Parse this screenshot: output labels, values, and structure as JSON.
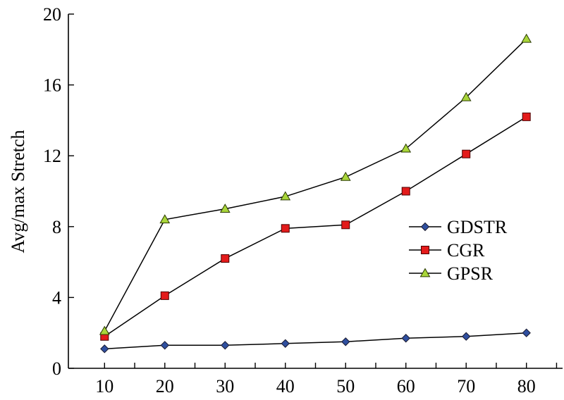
{
  "chart_data": {
    "type": "line",
    "title": "",
    "xlabel": "",
    "ylabel": "Avg/max Stretch",
    "x": [
      10,
      20,
      30,
      40,
      50,
      60,
      70,
      80
    ],
    "xlim": [
      4,
      86
    ],
    "ylim": [
      0,
      20
    ],
    "yticks": [
      0,
      4,
      8,
      12,
      16,
      20
    ],
    "xticks": [
      10,
      20,
      30,
      40,
      50,
      60,
      70,
      80
    ],
    "grid": false,
    "legend_position": "center-right",
    "series": [
      {
        "name": "GDSTR",
        "marker": "diamond",
        "color": "#2f4f9f",
        "values": [
          1.1,
          1.3,
          1.3,
          1.4,
          1.5,
          1.7,
          1.8,
          2.0
        ]
      },
      {
        "name": "CGR",
        "marker": "square",
        "color": "#e31b1b",
        "values": [
          1.8,
          4.1,
          6.2,
          7.9,
          8.1,
          10.0,
          12.1,
          14.2
        ]
      },
      {
        "name": "GPSR",
        "marker": "triangle",
        "color": "#a9d63a",
        "values": [
          2.1,
          8.4,
          9.0,
          9.7,
          10.8,
          12.4,
          15.3,
          18.6
        ]
      }
    ]
  }
}
